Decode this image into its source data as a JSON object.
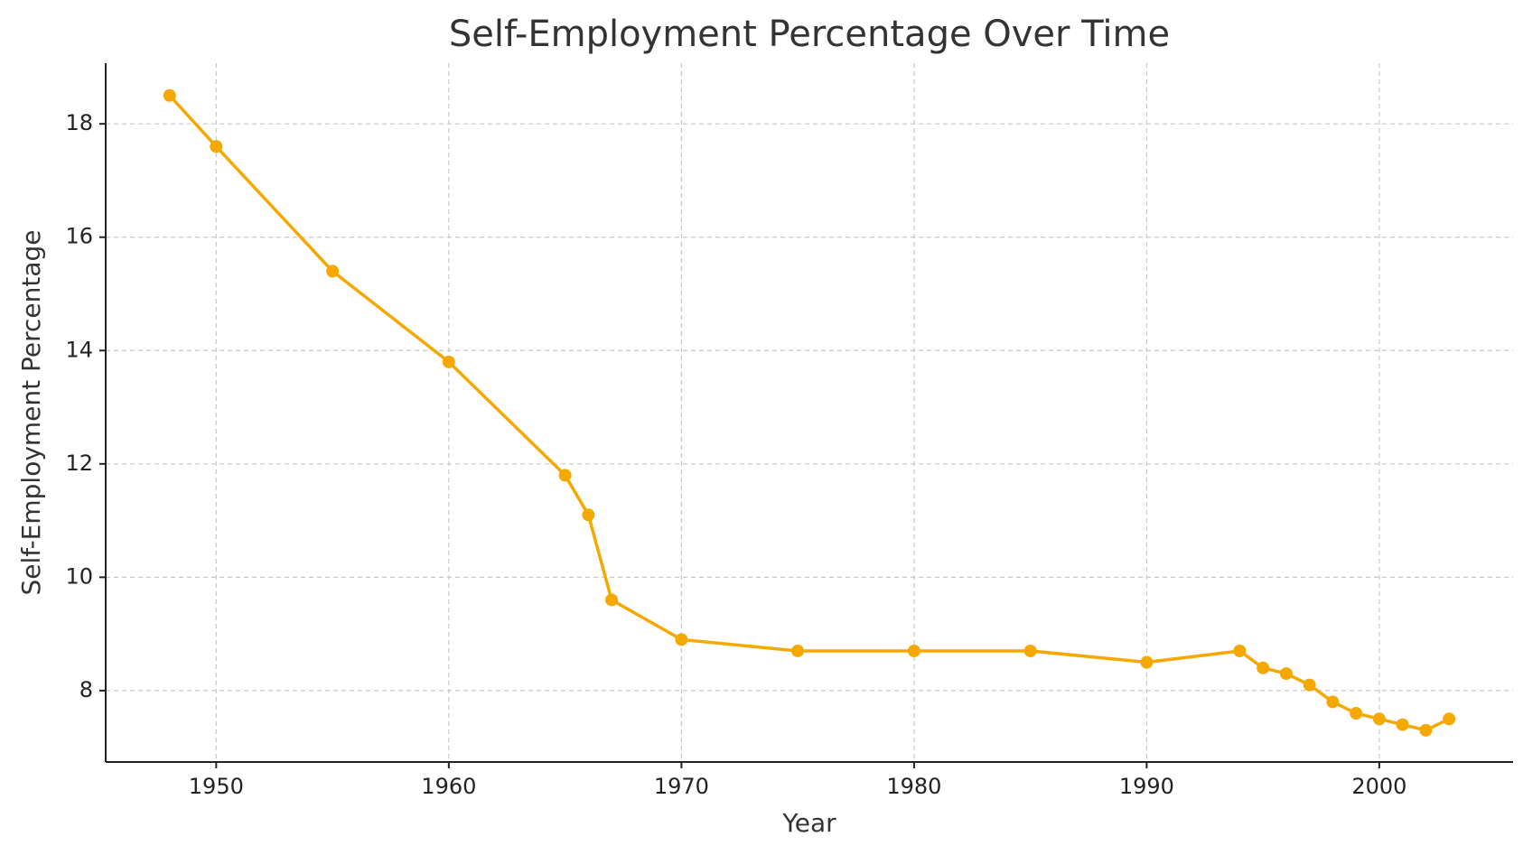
{
  "chart_data": {
    "type": "line",
    "title": "Self-Employment Percentage Over Time",
    "x_label": "Year",
    "y_label": "Self-Employment Percentage",
    "x": [
      1948,
      1950,
      1955,
      1960,
      1965,
      1966,
      1967,
      1970,
      1975,
      1980,
      1985,
      1990,
      1994,
      1995,
      1996,
      1997,
      1998,
      1999,
      2000,
      2001,
      2002,
      2003
    ],
    "series": [
      {
        "name": "Self-Employment Percentage",
        "color": "#f5a800",
        "values": [
          18.5,
          17.6,
          15.4,
          13.8,
          11.8,
          11.1,
          9.6,
          8.9,
          8.7,
          8.7,
          8.7,
          8.5,
          8.7,
          8.4,
          8.3,
          8.1,
          7.8,
          7.6,
          7.5,
          7.4,
          7.3,
          7.5
        ]
      }
    ],
    "xlim": [
      1945.25,
      2005.75
    ],
    "ylim": [
      6.74,
      19.07
    ],
    "xticks": [
      1950,
      1960,
      1970,
      1980,
      1990,
      2000
    ],
    "yticks": [
      8,
      10,
      12,
      14,
      16,
      18
    ],
    "grid": true
  }
}
